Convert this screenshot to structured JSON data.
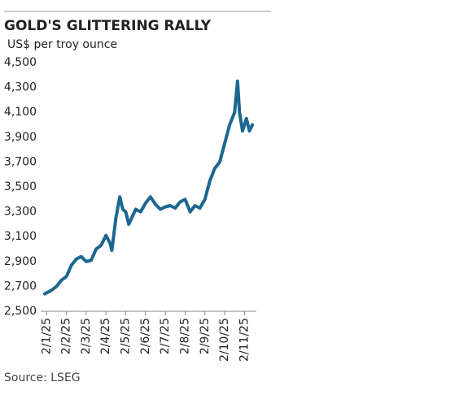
{
  "chart_data": {
    "type": "line",
    "title": "GOLD'S GLITTERING RALLY",
    "subtitle": "US$ per troy ounce",
    "source": "Source: LSEG",
    "color": "#1c6791",
    "grid": false,
    "x": [
      -0.1,
      0.25,
      0.5,
      0.75,
      1.0,
      1.25,
      1.5,
      1.75,
      2.0,
      2.25,
      2.5,
      2.75,
      3.0,
      3.2,
      3.3,
      3.5,
      3.7,
      3.85,
      4.0,
      4.15,
      4.3,
      4.5,
      4.75,
      5.0,
      5.25,
      5.5,
      5.75,
      6.0,
      6.25,
      6.5,
      6.75,
      7.0,
      7.25,
      7.5,
      7.75,
      8.0,
      8.25,
      8.5,
      8.75,
      9.0,
      9.25,
      9.5,
      9.65,
      9.75,
      9.9,
      10.1,
      10.25,
      10.4
    ],
    "values": [
      2640,
      2670,
      2700,
      2750,
      2780,
      2870,
      2920,
      2940,
      2900,
      2910,
      3000,
      3030,
      3110,
      3050,
      2990,
      3250,
      3420,
      3320,
      3300,
      3200,
      3250,
      3320,
      3300,
      3370,
      3420,
      3360,
      3320,
      3340,
      3350,
      3330,
      3380,
      3400,
      3300,
      3350,
      3330,
      3400,
      3550,
      3650,
      3700,
      3850,
      4000,
      4100,
      4350,
      4100,
      3950,
      4050,
      3950,
      4000
    ],
    "xlim": [
      -0.3,
      10.6
    ],
    "xticks": [
      {
        "value": 0,
        "label": "2/1/25"
      },
      {
        "value": 1,
        "label": "2/2/25"
      },
      {
        "value": 2,
        "label": "2/3/25"
      },
      {
        "value": 3,
        "label": "2/4/25"
      },
      {
        "value": 4,
        "label": "2/5/25"
      },
      {
        "value": 5,
        "label": "2/6/25"
      },
      {
        "value": 6,
        "label": "2/7/25"
      },
      {
        "value": 7,
        "label": "2/8/25"
      },
      {
        "value": 8,
        "label": "2/9/25"
      },
      {
        "value": 9,
        "label": "2/10/25"
      },
      {
        "value": 10,
        "label": "2/11/25"
      }
    ],
    "ylim": [
      2500,
      4500
    ],
    "yticks": [
      {
        "value": 2500,
        "label": "2,500"
      },
      {
        "value": 2700,
        "label": "2,700"
      },
      {
        "value": 2900,
        "label": "2,900"
      },
      {
        "value": 3100,
        "label": "3,100"
      },
      {
        "value": 3300,
        "label": "3,300"
      },
      {
        "value": 3500,
        "label": "3,500"
      },
      {
        "value": 3700,
        "label": "3,700"
      },
      {
        "value": 3900,
        "label": "3,900"
      },
      {
        "value": 4100,
        "label": "4,100"
      },
      {
        "value": 4300,
        "label": "4,300"
      },
      {
        "value": 4500,
        "label": "4,500"
      }
    ]
  }
}
